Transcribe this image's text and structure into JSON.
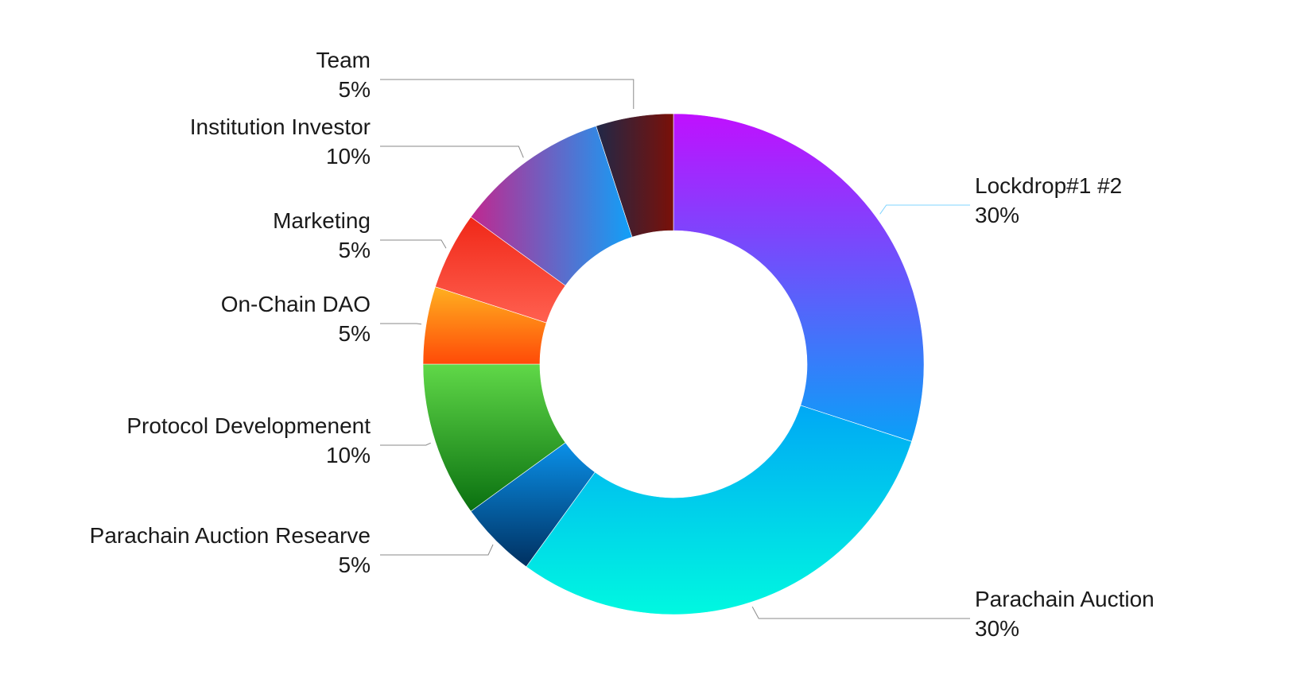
{
  "chart_data": {
    "type": "pie",
    "variant": "donut",
    "title": "",
    "slices": [
      {
        "label": "Lockdrop#1 #2",
        "value": 30,
        "value_label": "30%",
        "color_start": "#c010ff",
        "color_end": "#0aa0f8",
        "leader_color": "#7fd4ff",
        "label_side": "right"
      },
      {
        "label": "Parachain Auction",
        "value": 30,
        "value_label": "30%",
        "color_start": "#00a8f5",
        "color_end": "#00f8e0",
        "leader_color": "#8a8a8a",
        "label_side": "right"
      },
      {
        "label": "Parachain Auction Researve",
        "value": 5,
        "value_label": "5%",
        "color_start": "#0a90e8",
        "color_end": "#003060",
        "leader_color": "#8a8a8a",
        "label_side": "left"
      },
      {
        "label": "Protocol Developmenent",
        "value": 10,
        "value_label": "10%",
        "color_start": "#60d848",
        "color_end": "#0a7010",
        "leader_color": "#8a8a8a",
        "label_side": "left"
      },
      {
        "label": "On-Chain DAO",
        "value": 5,
        "value_label": "5%",
        "color_start": "#ffb020",
        "color_end": "#ff4a08",
        "leader_color": "#8a8a8a",
        "label_side": "left"
      },
      {
        "label": "Marketing",
        "value": 5,
        "value_label": "5%",
        "color_start": "#f02818",
        "color_end": "#ff6050",
        "leader_color": "#8a8a8a",
        "label_side": "left"
      },
      {
        "label": "Institution Investor",
        "value": 10,
        "value_label": "10%",
        "color_start": "#c02890",
        "color_end": "#10a0f8",
        "leader_color": "#8a8a8a",
        "label_side": "left"
      },
      {
        "label": "Team",
        "value": 5,
        "value_label": "5%",
        "color_start": "#202848",
        "color_end": "#7a1008",
        "leader_color": "#8a8a8a",
        "label_side": "left"
      }
    ],
    "start_angle": "12 o'clock",
    "direction": "clockwise",
    "legend": "none"
  }
}
